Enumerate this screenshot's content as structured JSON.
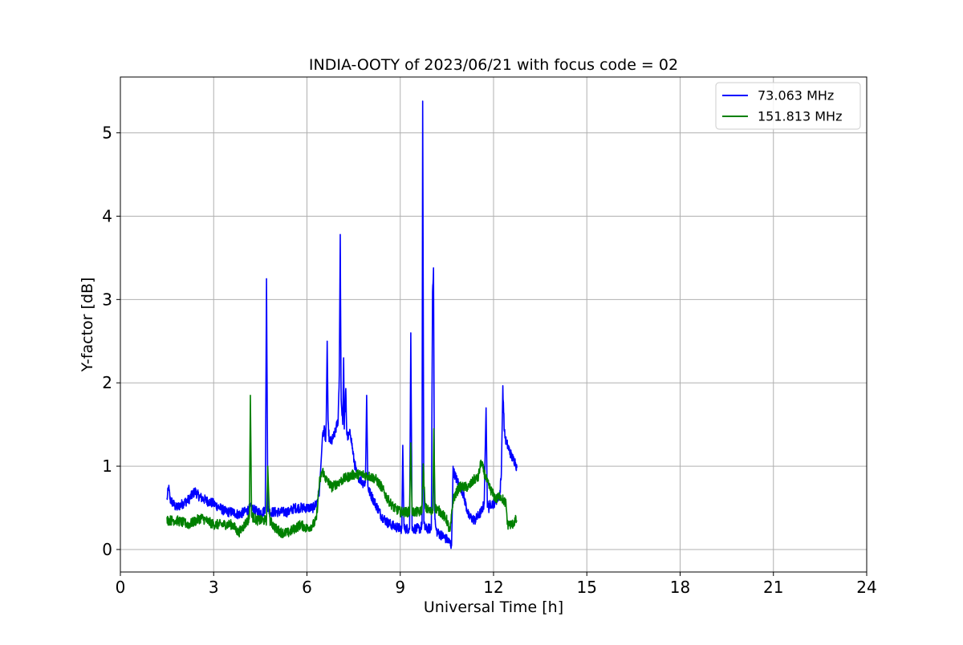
{
  "chart_data": {
    "type": "line",
    "title": "INDIA-OOTY of 2023/06/21 with focus code = 02",
    "xlabel": "Universal Time [h]",
    "ylabel": "Y-factor [dB]",
    "xlim": [
      0,
      24
    ],
    "ylim": [
      -0.27,
      5.67
    ],
    "xticks": [
      0,
      3,
      6,
      9,
      12,
      15,
      18,
      21,
      24
    ],
    "yticks": [
      0,
      1,
      2,
      3,
      4,
      5
    ],
    "grid": true,
    "legend_position": "top-right",
    "series": [
      {
        "name": "73.063 MHz",
        "color": "#0000ff",
        "noise": 0.06,
        "x": [
          1.5,
          1.55,
          1.6,
          1.7,
          1.8,
          2.0,
          2.2,
          2.4,
          2.5,
          2.6,
          2.8,
          3.0,
          3.2,
          3.4,
          3.6,
          3.8,
          4.0,
          4.2,
          4.4,
          4.6,
          4.66,
          4.7,
          4.74,
          4.8,
          5.0,
          5.2,
          5.4,
          5.6,
          5.8,
          6.0,
          6.2,
          6.3,
          6.4,
          6.5,
          6.55,
          6.6,
          6.62,
          6.65,
          6.68,
          6.72,
          6.8,
          6.9,
          7.0,
          7.04,
          7.07,
          7.1,
          7.15,
          7.18,
          7.2,
          7.25,
          7.28,
          7.32,
          7.4,
          7.5,
          7.6,
          7.8,
          7.88,
          7.92,
          7.96,
          8.0,
          8.2,
          8.4,
          8.6,
          8.8,
          9.0,
          9.05,
          9.08,
          9.12,
          9.2,
          9.3,
          9.34,
          9.38,
          9.5,
          9.6,
          9.65,
          9.7,
          9.72,
          9.76,
          9.8,
          9.9,
          10.0,
          10.04,
          10.07,
          10.1,
          10.14,
          10.2,
          10.3,
          10.4,
          10.5,
          10.6,
          10.65,
          10.7,
          10.8,
          11.0,
          11.2,
          11.4,
          11.6,
          11.7,
          11.76,
          11.8,
          11.85,
          11.9,
          12.0,
          12.1,
          12.2,
          12.25,
          12.3,
          12.35,
          12.4,
          12.5,
          12.6,
          12.7,
          12.75
        ],
        "y": [
          0.6,
          0.75,
          0.6,
          0.55,
          0.5,
          0.55,
          0.6,
          0.7,
          0.65,
          0.62,
          0.58,
          0.55,
          0.5,
          0.45,
          0.45,
          0.42,
          0.45,
          0.5,
          0.45,
          0.45,
          0.5,
          3.25,
          0.5,
          0.45,
          0.45,
          0.45,
          0.45,
          0.5,
          0.5,
          0.5,
          0.5,
          0.55,
          0.7,
          1.35,
          1.45,
          1.3,
          1.5,
          2.5,
          1.5,
          1.3,
          1.3,
          1.4,
          1.55,
          2.1,
          3.78,
          1.8,
          1.5,
          2.3,
          1.5,
          1.9,
          1.4,
          1.35,
          1.4,
          1.1,
          0.9,
          0.8,
          0.8,
          1.85,
          0.75,
          0.7,
          0.55,
          0.4,
          0.32,
          0.28,
          0.25,
          0.25,
          1.25,
          0.25,
          0.25,
          0.25,
          2.6,
          0.25,
          0.25,
          0.25,
          0.25,
          0.3,
          5.38,
          0.3,
          0.25,
          0.25,
          0.25,
          3.1,
          3.38,
          0.5,
          0.25,
          0.2,
          0.18,
          0.15,
          0.12,
          0.08,
          0.05,
          0.95,
          0.85,
          0.7,
          0.4,
          0.35,
          0.45,
          0.55,
          1.7,
          0.55,
          0.5,
          0.55,
          0.55,
          0.6,
          0.65,
          0.9,
          1.95,
          1.4,
          1.3,
          1.2,
          1.1,
          1.05,
          0.98
        ]
      },
      {
        "name": "151.813 MHz",
        "color": "#008000",
        "noise": 0.06,
        "x": [
          1.5,
          1.8,
          2.2,
          2.6,
          3.0,
          3.3,
          3.6,
          3.8,
          4.0,
          4.1,
          4.15,
          4.18,
          4.22,
          4.4,
          4.6,
          4.7,
          4.74,
          4.8,
          5.0,
          5.2,
          5.4,
          5.6,
          5.8,
          6.0,
          6.2,
          6.3,
          6.4,
          6.5,
          6.6,
          6.8,
          7.0,
          7.2,
          7.5,
          7.8,
          8.0,
          8.2,
          8.4,
          8.6,
          8.8,
          9.0,
          9.2,
          9.3,
          9.34,
          9.38,
          9.5,
          9.65,
          9.7,
          9.74,
          9.8,
          10.0,
          10.05,
          10.08,
          10.12,
          10.3,
          10.5,
          10.6,
          10.7,
          10.9,
          11.2,
          11.4,
          11.5,
          11.6,
          11.8,
          12.0,
          12.1,
          12.2,
          12.3,
          12.4,
          12.45,
          12.5,
          12.6,
          12.7,
          12.75
        ],
        "y": [
          0.35,
          0.35,
          0.3,
          0.38,
          0.3,
          0.3,
          0.3,
          0.2,
          0.3,
          0.35,
          0.4,
          1.85,
          0.4,
          0.35,
          0.35,
          0.35,
          1.0,
          0.35,
          0.25,
          0.2,
          0.2,
          0.25,
          0.3,
          0.25,
          0.3,
          0.35,
          0.8,
          0.95,
          0.85,
          0.75,
          0.8,
          0.85,
          0.9,
          0.9,
          0.88,
          0.85,
          0.75,
          0.6,
          0.5,
          0.45,
          0.45,
          0.45,
          1.28,
          0.45,
          0.45,
          0.45,
          0.5,
          1.0,
          0.5,
          0.45,
          0.5,
          1.45,
          0.5,
          0.45,
          0.35,
          0.2,
          0.6,
          0.75,
          0.75,
          0.85,
          0.85,
          1.05,
          0.8,
          0.65,
          0.6,
          0.65,
          0.6,
          0.55,
          0.3,
          0.3,
          0.3,
          0.35,
          0.35
        ]
      }
    ]
  }
}
